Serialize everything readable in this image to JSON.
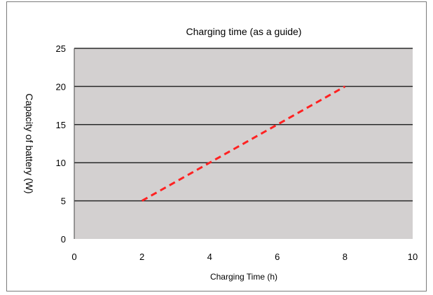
{
  "chart_data": {
    "type": "line",
    "title": "Charging time (as a guide)",
    "xlabel": "Charging Time (h)",
    "ylabel": "Capacity of battery (W)",
    "xlim": [
      0,
      10
    ],
    "ylim": [
      0,
      25
    ],
    "x_ticks": [
      0,
      2,
      4,
      6,
      8,
      10
    ],
    "y_ticks": [
      0,
      5,
      10,
      15,
      20,
      25
    ],
    "grid": "horizontal",
    "plot_background": "#d3d0d0",
    "series": [
      {
        "color": "#ff2222",
        "style": "dashed",
        "x": [
          2,
          4,
          6,
          8
        ],
        "y": [
          5,
          10,
          15,
          20
        ]
      }
    ]
  }
}
